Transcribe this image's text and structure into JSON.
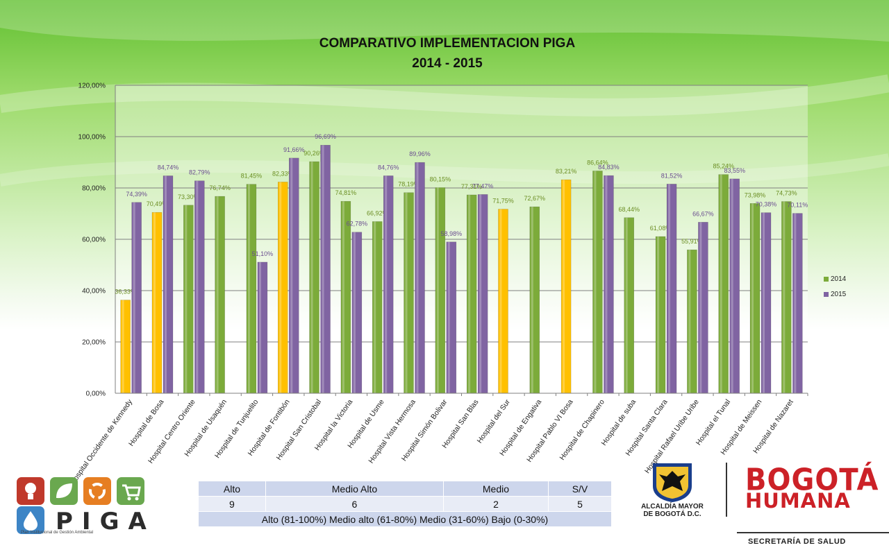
{
  "chart_data": {
    "type": "bar",
    "title": "COMPARATIVO IMPLEMENTACION PIGA",
    "subtitle": "2014 - 2015",
    "ylim": [
      0,
      120
    ],
    "yticks": [
      "0,00%",
      "20,00%",
      "40,00%",
      "60,00%",
      "80,00%",
      "100,00%",
      "120,00%"
    ],
    "grid": true,
    "legend_position": "right",
    "categories": [
      "Hospital Occidente de Kennedy",
      "Hospital de Bosa",
      "Hospital Centro Oriente",
      "Hospital de Usaquén",
      "Hospital de Tunjuelito",
      "Hospital de Fontibón",
      "Hospital San Cristobal",
      "Hospital la Victoria",
      "Hospital de Usme",
      "Hospital Vista Hermosa",
      "Hospital Simón Bolivar",
      "Hospital San Blas",
      "Hospital del Sur",
      "Hospital de Engativa",
      "Hospital Pablo VI Bosa",
      "Hospital de Chapinero",
      "Hospital de suba",
      "Hospital Santa Clara",
      "Hospital Rafael Uribe Uribe",
      "Hospital el Tunal",
      "Hospital de Meissen",
      "Hospital de Nazaret"
    ],
    "series": [
      {
        "name": "2014",
        "color": "#7cab3a",
        "values": [
          36.33,
          70.49,
          73.3,
          76.74,
          81.45,
          82.33,
          90.26,
          74.81,
          66.92,
          78.19,
          80.15,
          77.31,
          71.75,
          72.67,
          83.21,
          86.64,
          68.44,
          61.08,
          55.91,
          85.24,
          73.98,
          74.73
        ],
        "labels": [
          "36,33%",
          "70,49%",
          "73,30%",
          "76,74%",
          "81,45%",
          "82,33%",
          "90,26%",
          "74,81%",
          "66,92%",
          "78,19%",
          "80,15%",
          "77,31%",
          "71,75%",
          "72,67%",
          "83,21%",
          "86,64%",
          "68,44%",
          "61,08%",
          "55,91%",
          "85,24%",
          "73,98%",
          "74,73%"
        ]
      },
      {
        "name": "2015",
        "color": "#8064a2",
        "values": [
          74.39,
          84.74,
          82.79,
          null,
          51.1,
          91.66,
          96.69,
          62.78,
          84.76,
          89.96,
          58.98,
          77.47,
          null,
          null,
          null,
          84.83,
          null,
          81.52,
          66.67,
          83.55,
          70.38,
          70.11
        ],
        "labels": [
          "74,39%",
          "84,74%",
          "82,79%",
          null,
          "51,10%",
          "91,66%",
          "96,69%",
          "62,78%",
          "84,76%",
          "89,96%",
          "58,98%",
          "77,47%",
          null,
          null,
          null,
          "84,83%",
          null,
          "81,52%",
          "66,67%",
          "83,55%",
          "70,38%",
          "70,11%"
        ]
      }
    ],
    "highlight_2014_yellow": [
      0,
      1,
      5,
      12,
      14
    ],
    "highlight_color": "#ffc000"
  },
  "summary_table": {
    "headers": [
      "Alto",
      "Medio Alto",
      "Medio",
      "S/V"
    ],
    "values": [
      "9",
      "6",
      "2",
      "5"
    ],
    "footnote": "Alto (81-100%) Medio alto (61-80%) Medio (31-60%) Bajo (0-30%)"
  },
  "branding": {
    "piga_word": "PIGA",
    "piga_sub": "Plan Institucional de Gestión Ambiental",
    "alcaldia_line1": "ALCALDÍA MAYOR",
    "alcaldia_line2": "DE BOGOTÁ D.C.",
    "bogota_line1": "BOGOTÁ",
    "bogota_line2": "HUMANA",
    "secretaria": "SECRETARÍA DE SALUD"
  }
}
